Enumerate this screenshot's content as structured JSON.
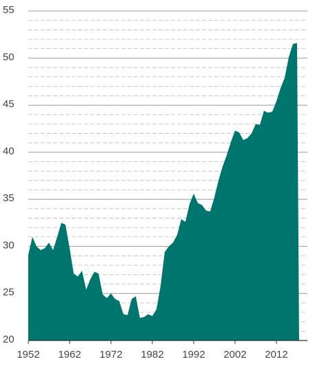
{
  "chart_data": {
    "type": "area",
    "color": "#00756e",
    "x": [
      1952,
      1953,
      1954,
      1955,
      1956,
      1957,
      1958,
      1959,
      1960,
      1961,
      1962,
      1963,
      1964,
      1965,
      1966,
      1967,
      1968,
      1969,
      1970,
      1971,
      1972,
      1973,
      1974,
      1975,
      1976,
      1977,
      1978,
      1979,
      1980,
      1981,
      1982,
      1983,
      1984,
      1985,
      1986,
      1987,
      1988,
      1989,
      1990,
      1991,
      1992,
      1993,
      1994,
      1995,
      1996,
      1997,
      1998,
      1999,
      2000,
      2001,
      2002,
      2003,
      2004,
      2005,
      2006,
      2007,
      2008,
      2009,
      2010,
      2011,
      2012,
      2013,
      2014,
      2015,
      2016,
      2017
    ],
    "values": [
      29.1,
      31.0,
      30.0,
      29.6,
      29.8,
      30.4,
      29.6,
      31.0,
      32.5,
      32.3,
      29.8,
      27.1,
      26.8,
      27.4,
      25.4,
      26.5,
      27.3,
      27.1,
      24.9,
      24.5,
      25.0,
      24.4,
      24.2,
      22.8,
      22.7,
      24.4,
      24.7,
      22.4,
      22.5,
      22.8,
      22.6,
      23.3,
      25.8,
      29.4,
      30.0,
      30.4,
      31.2,
      32.9,
      32.6,
      34.5,
      35.6,
      34.6,
      34.4,
      33.8,
      33.7,
      35.2,
      37.0,
      38.5,
      39.7,
      41.1,
      42.3,
      42.1,
      41.3,
      41.5,
      42.0,
      43.0,
      42.9,
      44.4,
      44.2,
      44.3,
      45.4,
      46.8,
      47.9,
      50.1,
      51.5,
      51.6
    ],
    "xlim": [
      1952,
      2018
    ],
    "xticks": [
      1952,
      1962,
      1972,
      1982,
      1992,
      2002,
      2012
    ],
    "ylim": [
      20,
      55
    ],
    "yticks": [
      20,
      25,
      30,
      35,
      40,
      45,
      50,
      55
    ],
    "minor_yticks": [
      21,
      22,
      23,
      24,
      26,
      27,
      28,
      29,
      31,
      32,
      33,
      34,
      36,
      37,
      38,
      39,
      41,
      42,
      43,
      44,
      46,
      47,
      48,
      49,
      51,
      52,
      53,
      54
    ],
    "grid": true
  }
}
